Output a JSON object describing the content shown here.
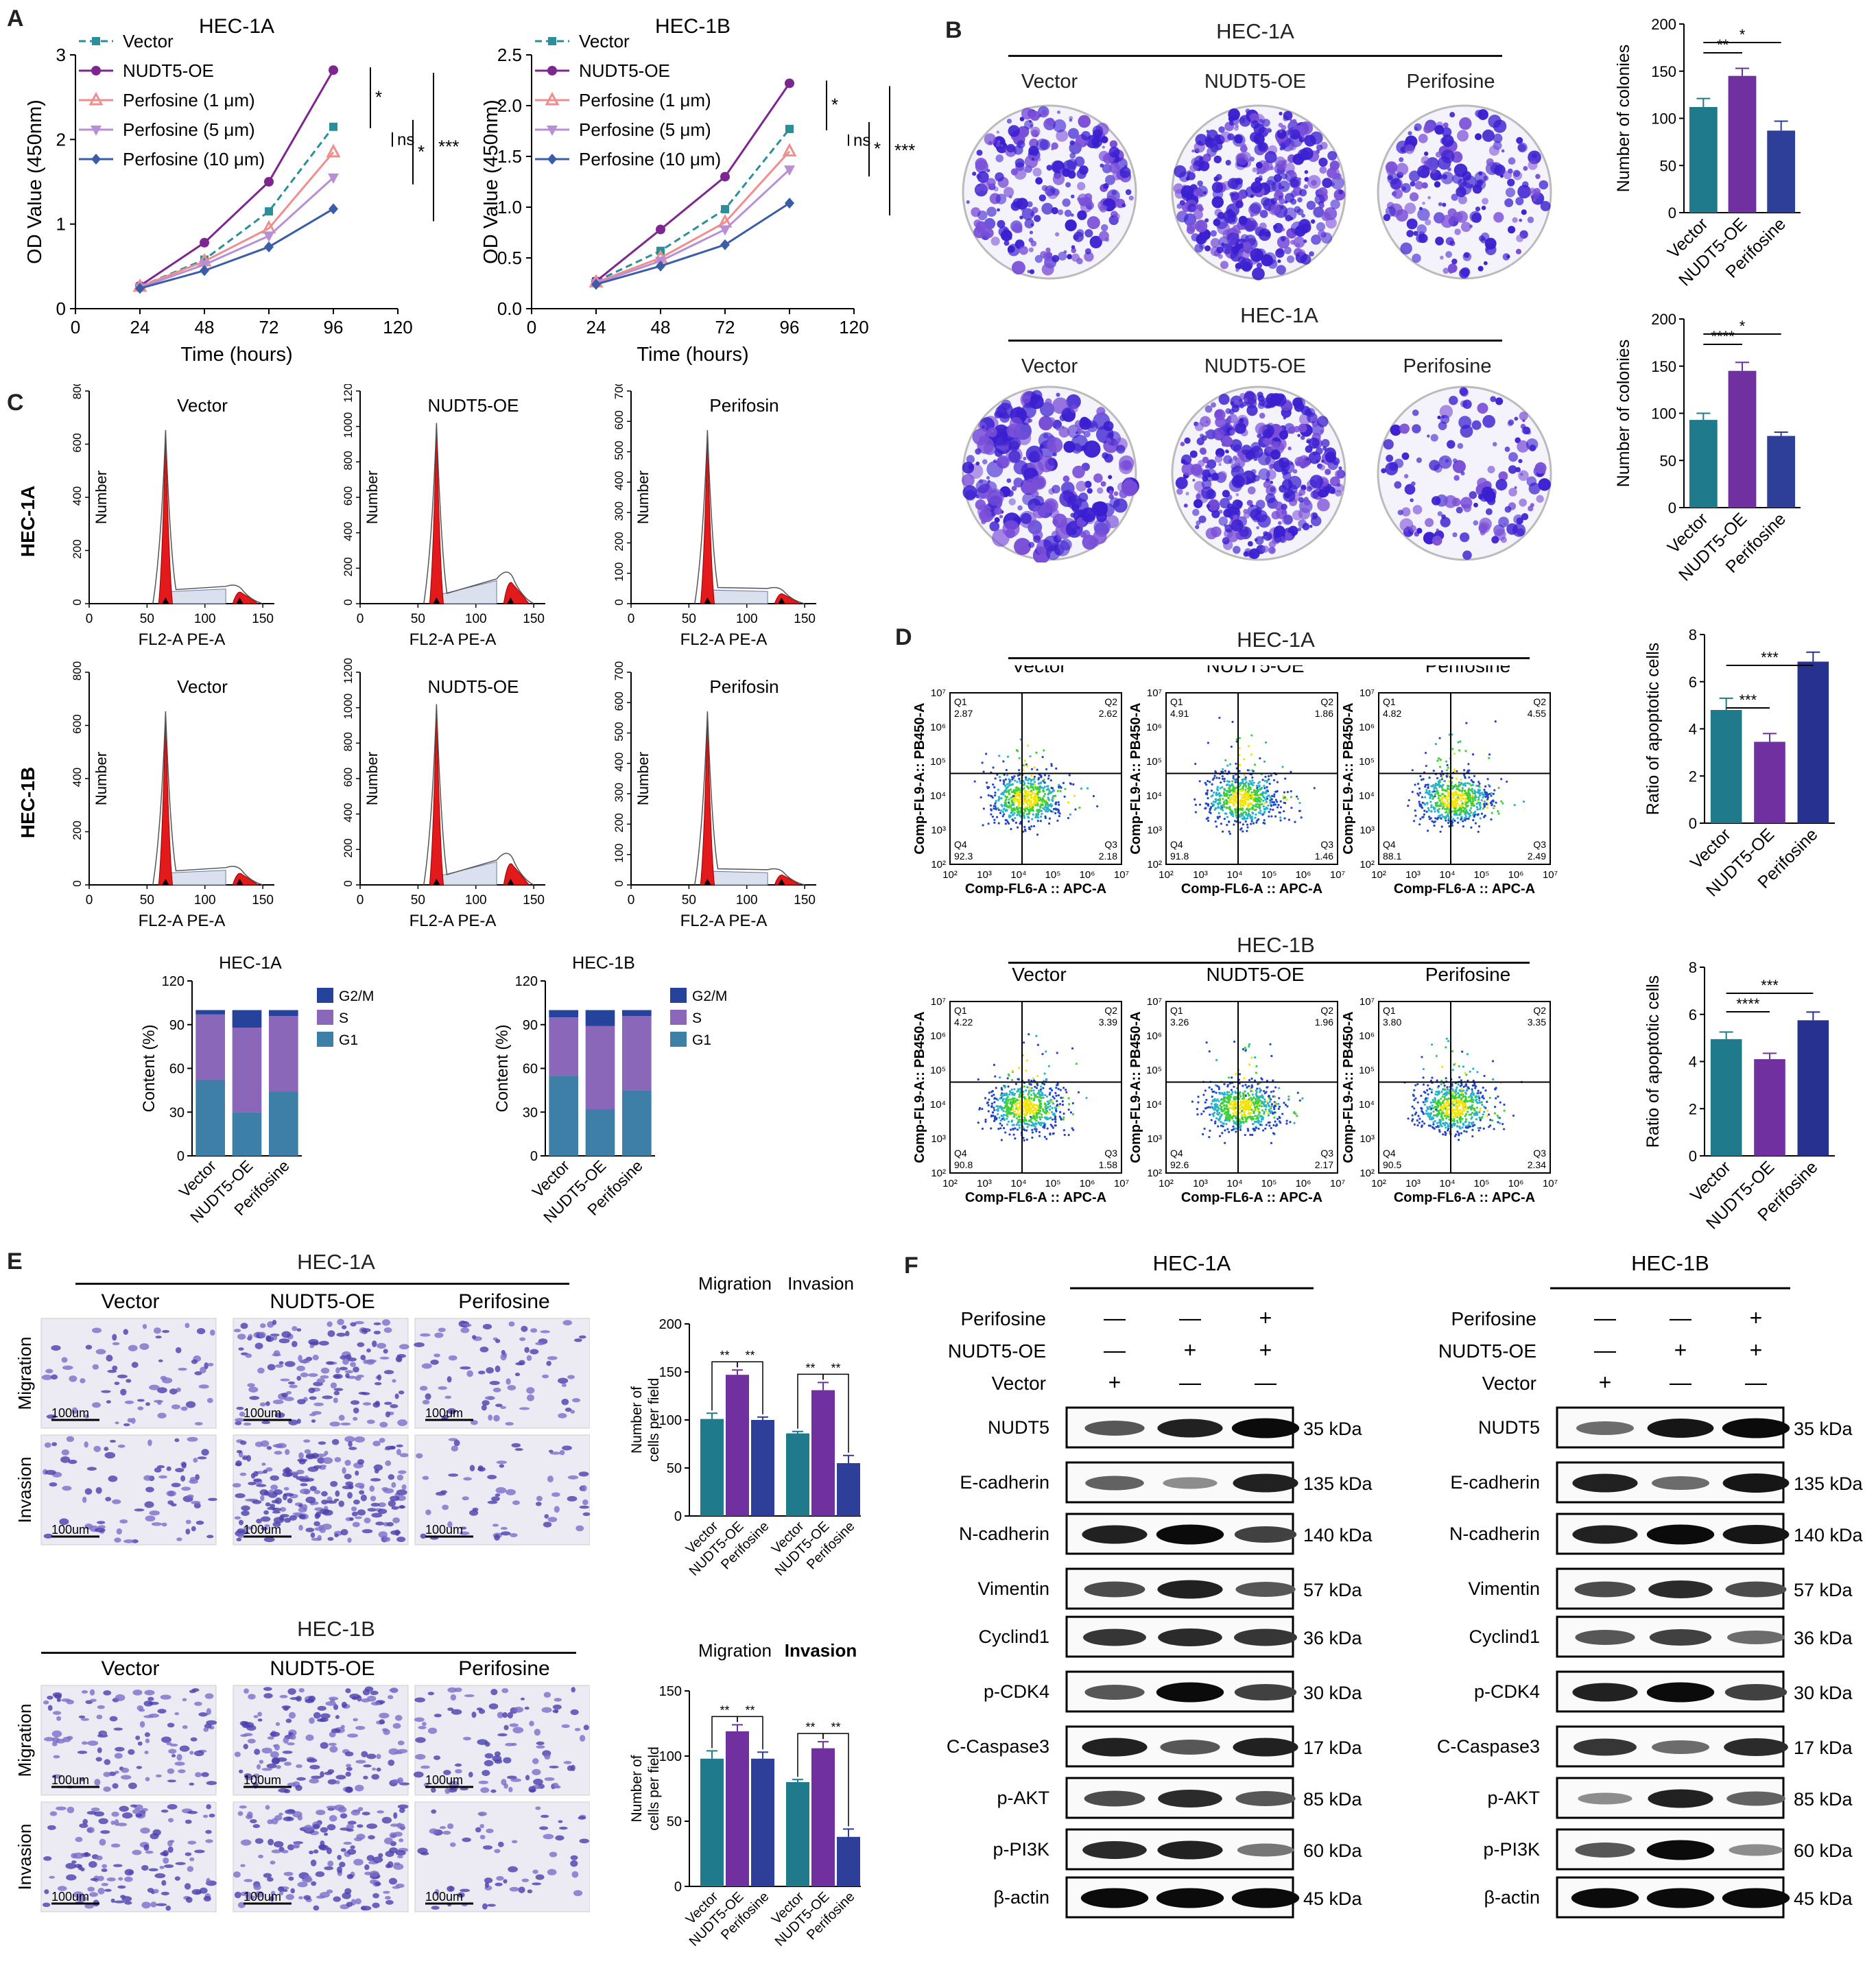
{
  "panels": {
    "a": "A",
    "b": "B",
    "c": "C",
    "d": "D",
    "e": "E",
    "f": "F"
  },
  "colors": {
    "vector": "#2a8f9a",
    "oe": "#7d2690",
    "perif": "#3f62b0",
    "p1": "#f08e8e",
    "p5": "#b88fd6",
    "p10": "#3b5da8",
    "teal": "#1f7a8c",
    "purple": "#7030a0",
    "blue": "#2e3f99",
    "darkblue": "#27318f",
    "g2m": "#26439c",
    "s": "#8a67b8",
    "g1": "#3d7fa6",
    "red": "#e31a1c"
  },
  "chart_data": [
    {
      "id": "A1",
      "type": "line",
      "title": "HEC-1A",
      "xlabel": "Time (hours)",
      "ylabel": "OD Value (450nm)",
      "x": [
        24,
        48,
        72,
        96
      ],
      "xlim": [
        0,
        120
      ],
      "ylim": [
        0,
        3
      ],
      "xticks": [
        "0",
        "24",
        "48",
        "72",
        "96",
        "120"
      ],
      "yticks": [
        "0",
        "1",
        "2",
        "3"
      ],
      "series": [
        {
          "name": "Vector",
          "values": [
            0.26,
            0.58,
            1.15,
            2.15
          ]
        },
        {
          "name": "NUDT5-OE",
          "values": [
            0.27,
            0.78,
            1.5,
            2.82
          ]
        },
        {
          "name": "Perfosine (1 μm)",
          "values": [
            0.26,
            0.56,
            0.95,
            1.85
          ]
        },
        {
          "name": "Perfosine (5 μm)",
          "values": [
            0.25,
            0.52,
            0.86,
            1.55
          ]
        },
        {
          "name": "Perfosine (10 μm)",
          "values": [
            0.24,
            0.45,
            0.73,
            1.18
          ]
        }
      ],
      "annotations": [
        "*",
        "ns",
        "*",
        "***"
      ]
    },
    {
      "id": "A2",
      "type": "line",
      "title": "HEC-1B",
      "xlabel": "Time (hours)",
      "ylabel": "OD Value (450nm)",
      "x": [
        24,
        48,
        72,
        96
      ],
      "xlim": [
        0,
        120
      ],
      "ylim": [
        0,
        2.5
      ],
      "xticks": [
        "0",
        "24",
        "48",
        "72",
        "96",
        "120"
      ],
      "yticks": [
        "0.0",
        "0.5",
        "1.0",
        "1.5",
        "2.0",
        "2.5"
      ],
      "series": [
        {
          "name": "Vector",
          "values": [
            0.27,
            0.57,
            0.98,
            1.77
          ]
        },
        {
          "name": "NUDT5-OE",
          "values": [
            0.27,
            0.78,
            1.3,
            2.22
          ]
        },
        {
          "name": "Perfosine (1 μm)",
          "values": [
            0.26,
            0.5,
            0.85,
            1.55
          ]
        },
        {
          "name": "Perfosine (5 μm)",
          "values": [
            0.25,
            0.47,
            0.78,
            1.37
          ]
        },
        {
          "name": "Perfosine (10 μm)",
          "values": [
            0.24,
            0.42,
            0.63,
            1.04
          ]
        }
      ],
      "annotations": [
        "*",
        "ns",
        "*",
        "***"
      ]
    },
    {
      "id": "B1",
      "type": "bar",
      "ylabel": "Number of colonies",
      "categories": [
        "Vector",
        "NUDT5-OE",
        "Perifosine"
      ],
      "values": [
        112,
        145,
        87
      ],
      "errors": [
        9,
        8,
        10
      ],
      "ylim": [
        0,
        200
      ],
      "yticks": [
        "0",
        "50",
        "100",
        "150",
        "200"
      ],
      "sig": [
        {
          "a": 0,
          "b": 1,
          "label": "**"
        },
        {
          "a": 0,
          "b": 2,
          "label": "*"
        }
      ]
    },
    {
      "id": "B2",
      "type": "bar",
      "ylabel": "Number of colonies",
      "categories": [
        "Vector",
        "NUDT5-OE",
        "Perifosine"
      ],
      "values": [
        93,
        145,
        76
      ],
      "errors": [
        7,
        9,
        4
      ],
      "ylim": [
        0,
        200
      ],
      "yticks": [
        "0",
        "50",
        "100",
        "150",
        "200"
      ],
      "sig": [
        {
          "a": 0,
          "b": 1,
          "label": "****"
        },
        {
          "a": 0,
          "b": 2,
          "label": "*"
        }
      ]
    },
    {
      "id": "C1",
      "type": "bar",
      "stacked": true,
      "title": "HEC-1A",
      "ylabel": "Content (%)",
      "categories": [
        "Vector",
        "NUDT5-OE",
        "Perifosine"
      ],
      "ylim": [
        0,
        120
      ],
      "yticks": [
        "0",
        "30",
        "60",
        "90",
        "120"
      ],
      "series": [
        {
          "name": "G1",
          "values": [
            52,
            30,
            44
          ]
        },
        {
          "name": "S",
          "values": [
            45,
            58,
            52
          ]
        },
        {
          "name": "G2/M",
          "values": [
            3,
            12,
            4
          ]
        }
      ]
    },
    {
      "id": "C2",
      "type": "bar",
      "stacked": true,
      "title": "HEC-1B",
      "ylabel": "Content (%)",
      "categories": [
        "Vector",
        "NUDT5-OE",
        "Perifosine"
      ],
      "ylim": [
        0,
        120
      ],
      "yticks": [
        "0",
        "30",
        "60",
        "90",
        "120"
      ],
      "series": [
        {
          "name": "G1",
          "values": [
            55,
            32,
            45
          ]
        },
        {
          "name": "S",
          "values": [
            40,
            57,
            51
          ]
        },
        {
          "name": "G2/M",
          "values": [
            5,
            11,
            4
          ]
        }
      ]
    },
    {
      "id": "D1",
      "type": "bar",
      "ylabel": "Ratio of apoptotic cells",
      "categories": [
        "Vector",
        "NUDT5-OE",
        "Perifosine"
      ],
      "values": [
        4.8,
        3.45,
        6.85
      ],
      "errors": [
        0.5,
        0.35,
        0.4
      ],
      "ylim": [
        0,
        8
      ],
      "yticks": [
        "0",
        "2",
        "4",
        "6",
        "8"
      ],
      "sig": [
        {
          "a": 0,
          "b": 1,
          "label": "***"
        },
        {
          "a": 0,
          "b": 2,
          "label": "***"
        }
      ]
    },
    {
      "id": "D2",
      "type": "bar",
      "ylabel": "Ratio of apoptotic cells",
      "categories": [
        "Vector",
        "NUDT5-OE",
        "Perifosine"
      ],
      "values": [
        4.95,
        4.1,
        5.75
      ],
      "errors": [
        0.3,
        0.25,
        0.35
      ],
      "ylim": [
        0,
        8
      ],
      "yticks": [
        "0",
        "2",
        "4",
        "6",
        "8"
      ],
      "sig": [
        {
          "a": 0,
          "b": 1,
          "label": "****"
        },
        {
          "a": 0,
          "b": 2,
          "label": "***"
        }
      ]
    },
    {
      "id": "E1",
      "type": "bar",
      "ylabel": "Number of cells per field",
      "groups": [
        "Migration",
        "Invasion"
      ],
      "categories": [
        "Vector",
        "NUDT5-OE",
        "Perifosine"
      ],
      "values": [
        [
          101,
          147,
          100
        ],
        [
          86,
          131,
          55
        ]
      ],
      "errors": [
        [
          6,
          5,
          3
        ],
        [
          2,
          8,
          8
        ]
      ],
      "ylim": [
        0,
        200
      ],
      "yticks": [
        "0",
        "50",
        "100",
        "150",
        "200"
      ],
      "sig": [
        "**",
        "**",
        "**",
        "**"
      ]
    },
    {
      "id": "E2",
      "type": "bar",
      "ylabel": "Number of cells per field",
      "groups": [
        "Migration",
        "Invasion"
      ],
      "categories": [
        "Vector",
        "NUDT5-OE",
        "Perifosine"
      ],
      "values": [
        [
          98,
          119,
          98
        ],
        [
          80,
          106,
          38
        ]
      ],
      "errors": [
        [
          6,
          5,
          5
        ],
        [
          2,
          5,
          6
        ]
      ],
      "ylim": [
        0,
        150
      ],
      "yticks": [
        "0",
        "50",
        "100",
        "150"
      ],
      "sig": [
        "**",
        "**",
        "**",
        "**"
      ]
    }
  ],
  "a_sig_labels": [
    "*",
    "ns",
    "*",
    "***"
  ],
  "b": {
    "row1_title": "HEC-1A",
    "row2_title": "HEC-1A",
    "labels": [
      "Vector",
      "NUDT5-OE",
      "Perifosine"
    ]
  },
  "c": {
    "row_labels": [
      "HEC-1A",
      "HEC-1B"
    ],
    "titles": [
      "Vector",
      "NUDT5-OE",
      "Perifosin"
    ],
    "ylabel": "Number",
    "xlabel": "FL2-A  PE-A",
    "xticks": [
      "0",
      "50",
      "100",
      "150"
    ],
    "yticks_vec": [
      "0",
      "200",
      "400",
      "600",
      "800"
    ],
    "yticks_oe": [
      "0",
      "200",
      "400",
      "600",
      "800",
      "1000",
      "1200"
    ],
    "yticks_pf": [
      "0",
      "100",
      "200",
      "300",
      "400",
      "500",
      "600",
      "700"
    ]
  },
  "d": {
    "titles": [
      "HEC-1A",
      "HEC-1B"
    ],
    "labels": [
      "Vector",
      "NUDT5-OE",
      "Perifosine"
    ],
    "xlabel": "Comp-FL6-A :: APC-A",
    "ylabel": "Comp-FL9-A:: PB450-A",
    "quads": [
      [
        [
          "Q1",
          "2.87"
        ],
        [
          "Q2",
          "2.62"
        ],
        [
          "Q4",
          "92.3"
        ],
        [
          "Q3",
          "2.18"
        ]
      ],
      [
        [
          "Q1",
          "4.91"
        ],
        [
          "Q2",
          "1.86"
        ],
        [
          "Q4",
          "91.8"
        ],
        [
          "Q3",
          "1.46"
        ]
      ],
      [
        [
          "Q1",
          "4.82"
        ],
        [
          "Q2",
          "4.55"
        ],
        [
          "Q4",
          "88.1"
        ],
        [
          "Q3",
          "2.49"
        ]
      ],
      [
        [
          "Q1",
          "4.22"
        ],
        [
          "Q2",
          "3.39"
        ],
        [
          "Q4",
          "90.8"
        ],
        [
          "Q3",
          "1.58"
        ]
      ],
      [
        [
          "Q1",
          "3.26"
        ],
        [
          "Q2",
          "1.96"
        ],
        [
          "Q4",
          "92.6"
        ],
        [
          "Q3",
          "2.17"
        ]
      ],
      [
        [
          "Q1",
          "3.80"
        ],
        [
          "Q2",
          "3.35"
        ],
        [
          "Q4",
          "90.5"
        ],
        [
          "Q3",
          "2.34"
        ]
      ]
    ],
    "axis_ticks": [
      "10²",
      "10³",
      "10⁴",
      "10⁵",
      "10⁶",
      "10⁷"
    ]
  },
  "e": {
    "titles": [
      "HEC-1A",
      "HEC-1B"
    ],
    "labels": [
      "Vector",
      "NUDT5-OE",
      "Perifosine"
    ],
    "rows": [
      "Migration",
      "Invasion"
    ],
    "scale": "100um"
  },
  "f": {
    "titles": [
      "HEC-1A",
      "HEC-1B"
    ],
    "treat_labels": [
      "Perifosine",
      "NUDT5-OE",
      "Vector"
    ],
    "treat_signs": [
      [
        "—",
        "—",
        "+"
      ],
      [
        "—",
        "+",
        "+"
      ],
      [
        "+",
        "—",
        "—"
      ]
    ],
    "proteins": [
      "NUDT5",
      "E-cadherin",
      "N-cadherin",
      "Vimentin",
      "Cyclind1",
      "p-CDK4",
      "C-Caspase3",
      "p-AKT",
      "p-PI3K",
      "β-actin"
    ],
    "kda": [
      "35 kDa",
      "135 kDa",
      "140 kDa",
      "57 kDa",
      "36 kDa",
      "30 kDa",
      "17 kDa",
      "85 kDa",
      "60 kDa",
      "45 kDa"
    ],
    "band_intensity_1a": [
      [
        0.6,
        0.85,
        0.95
      ],
      [
        0.55,
        0.35,
        0.85
      ],
      [
        0.85,
        0.95,
        0.7
      ],
      [
        0.65,
        0.85,
        0.6
      ],
      [
        0.75,
        0.8,
        0.75
      ],
      [
        0.6,
        0.95,
        0.7
      ],
      [
        0.85,
        0.6,
        0.85
      ],
      [
        0.65,
        0.8,
        0.6
      ],
      [
        0.8,
        0.85,
        0.45
      ],
      [
        0.95,
        0.95,
        0.95
      ]
    ],
    "band_intensity_1b": [
      [
        0.5,
        0.9,
        0.95
      ],
      [
        0.85,
        0.5,
        0.9
      ],
      [
        0.85,
        0.95,
        0.9
      ],
      [
        0.65,
        0.8,
        0.65
      ],
      [
        0.6,
        0.7,
        0.5
      ],
      [
        0.85,
        0.95,
        0.7
      ],
      [
        0.75,
        0.5,
        0.8
      ],
      [
        0.35,
        0.85,
        0.55
      ],
      [
        0.6,
        0.95,
        0.35
      ],
      [
        0.95,
        0.95,
        0.95
      ]
    ]
  }
}
